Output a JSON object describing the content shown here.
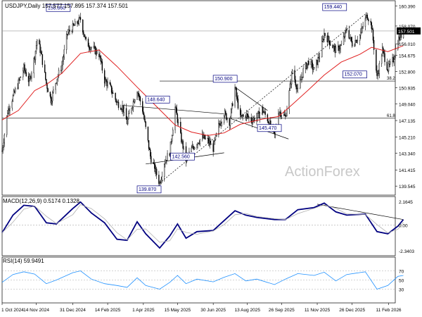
{
  "chart_data": [
    {
      "type": "candlestick",
      "header": "USDJPY,Daily  157.577 157.895 157.374 157.501",
      "watermark": "ActionForex",
      "current_price": "157.501",
      "ylim": [
        138.5,
        161.0
      ],
      "yticks": [
        "160.390",
        "158.070",
        "156.010",
        "154.675",
        "152.800",
        "150.935",
        "149.040",
        "147.135",
        "145.210",
        "143.340",
        "141.415",
        "139.545"
      ],
      "xticks": [
        "1 Oct 2024",
        "14 Nov 2024",
        "31 Dec 2024",
        "14 Feb 2025",
        "1 Apr 2025",
        "15 May 2025",
        "30 Jun 2025",
        "13 Aug 2025",
        "26 Sep 2025",
        "11 Nov 2025",
        "26 Dec 2025",
        "11 Feb 2026"
      ],
      "price_labels": [
        "158.860",
        "148.640",
        "142.560",
        "139.870",
        "150.900",
        "145.470",
        "159.440",
        "152.070"
      ],
      "fib_levels": [
        {
          "label": "38.2",
          "value": 151.7
        },
        {
          "label": "61.8",
          "value": 147.4
        }
      ],
      "close_path": [
        [
          "2024-10-01",
          143.6
        ],
        [
          "2024-10-08",
          148.2
        ],
        [
          "2024-10-15",
          149.9
        ],
        [
          "2024-10-22",
          151.5
        ],
        [
          "2024-10-29",
          153.2
        ],
        [
          "2024-11-05",
          151.6
        ],
        [
          "2024-11-12",
          154.6
        ],
        [
          "2024-11-15",
          156.5
        ],
        [
          "2024-11-20",
          155.0
        ],
        [
          "2024-11-27",
          151.4
        ],
        [
          "2024-12-03",
          149.5
        ],
        [
          "2024-12-10",
          151.9
        ],
        [
          "2024-12-17",
          153.5
        ],
        [
          "2024-12-24",
          157.2
        ],
        [
          "2025-01-01",
          158.0
        ],
        [
          "2025-01-10",
          158.86
        ],
        [
          "2025-01-17",
          156.2
        ],
        [
          "2025-01-24",
          155.6
        ],
        [
          "2025-02-03",
          154.8
        ],
        [
          "2025-02-10",
          151.8
        ],
        [
          "2025-02-17",
          151.0
        ],
        [
          "2025-02-26",
          149.2
        ],
        [
          "2025-03-05",
          148.7
        ],
        [
          "2025-03-11",
          146.9
        ],
        [
          "2025-03-17",
          148.8
        ],
        [
          "2025-03-24",
          150.7
        ],
        [
          "2025-03-31",
          148.4
        ],
        [
          "2025-04-04",
          146.2
        ],
        [
          "2025-04-10",
          143.0
        ],
        [
          "2025-04-22",
          139.87
        ],
        [
          "2025-04-28",
          142.3
        ],
        [
          "2025-05-05",
          143.5
        ],
        [
          "2025-05-12",
          148.64
        ],
        [
          "2025-05-19",
          145.3
        ],
        [
          "2025-05-26",
          142.56
        ],
        [
          "2025-06-02",
          143.8
        ],
        [
          "2025-06-09",
          144.6
        ],
        [
          "2025-06-16",
          145.2
        ],
        [
          "2025-06-23",
          144.8
        ],
        [
          "2025-06-30",
          143.9
        ],
        [
          "2025-07-07",
          146.5
        ],
        [
          "2025-07-14",
          148.0
        ],
        [
          "2025-07-21",
          147.0
        ],
        [
          "2025-07-28",
          150.9
        ],
        [
          "2025-08-04",
          147.4
        ],
        [
          "2025-08-11",
          147.8
        ],
        [
          "2025-08-18",
          147.2
        ],
        [
          "2025-08-25",
          147.5
        ],
        [
          "2025-09-01",
          148.4
        ],
        [
          "2025-09-08",
          147.3
        ],
        [
          "2025-09-17",
          145.47
        ],
        [
          "2025-09-22",
          148.3
        ],
        [
          "2025-10-01",
          147.5
        ],
        [
          "2025-10-06",
          150.4
        ],
        [
          "2025-10-10",
          153.0
        ],
        [
          "2025-10-17",
          150.5
        ],
        [
          "2025-10-24",
          152.9
        ],
        [
          "2025-10-31",
          154.0
        ],
        [
          "2025-11-07",
          153.0
        ],
        [
          "2025-11-14",
          154.7
        ],
        [
          "2025-11-20",
          157.2
        ],
        [
          "2025-11-28",
          156.1
        ],
        [
          "2025-12-05",
          155.2
        ],
        [
          "2025-12-12",
          155.8
        ],
        [
          "2025-12-19",
          157.7
        ],
        [
          "2025-12-26",
          156.0
        ],
        [
          "2026-01-05",
          157.0
        ],
        [
          "2026-01-12",
          158.8
        ],
        [
          "2026-01-14",
          159.44
        ],
        [
          "2026-01-20",
          158.1
        ],
        [
          "2026-01-23",
          155.6
        ],
        [
          "2026-01-27",
          152.07
        ],
        [
          "2026-02-03",
          155.3
        ],
        [
          "2026-02-10",
          153.1
        ],
        [
          "2026-02-17",
          154.2
        ],
        [
          "2026-02-23",
          156.4
        ],
        [
          "2026-03-02",
          157.5
        ]
      ],
      "sma_path": [
        [
          "2024-10-01",
          147.2
        ],
        [
          "2024-10-22",
          148.3
        ],
        [
          "2024-11-12",
          150.6
        ],
        [
          "2024-11-27",
          151.3
        ],
        [
          "2024-12-17",
          152.6
        ],
        [
          "2025-01-10",
          154.9
        ],
        [
          "2025-02-03",
          155.3
        ],
        [
          "2025-02-26",
          153.4
        ],
        [
          "2025-03-24",
          151.0
        ],
        [
          "2025-04-22",
          148.4
        ],
        [
          "2025-05-12",
          146.6
        ],
        [
          "2025-06-02",
          145.8
        ],
        [
          "2025-06-23",
          145.4
        ],
        [
          "2025-07-14",
          145.7
        ],
        [
          "2025-08-04",
          146.7
        ],
        [
          "2025-09-01",
          147.3
        ],
        [
          "2025-09-22",
          147.6
        ],
        [
          "2025-10-10",
          149.0
        ],
        [
          "2025-10-31",
          150.7
        ],
        [
          "2025-11-20",
          152.4
        ],
        [
          "2025-12-12",
          153.9
        ],
        [
          "2026-01-05",
          154.8
        ],
        [
          "2026-01-20",
          155.6
        ],
        [
          "2026-02-10",
          155.1
        ],
        [
          "2026-03-02",
          155.8
        ]
      ]
    },
    {
      "type": "line",
      "title": "MACD(12,26,9) 0.5174 0.1328",
      "ylim": [
        -2.8,
        2.6
      ],
      "yticks": [
        "2.1645",
        "0.00",
        "-2.3403"
      ],
      "macd_path": [
        [
          "2024-10-01",
          -0.7
        ],
        [
          "2024-10-15",
          0.9
        ],
        [
          "2024-10-29",
          1.8
        ],
        [
          "2024-11-12",
          1.7
        ],
        [
          "2024-11-27",
          0.2
        ],
        [
          "2024-12-10",
          0.1
        ],
        [
          "2024-12-31",
          1.5
        ],
        [
          "2025-01-10",
          2.1
        ],
        [
          "2025-01-24",
          1.1
        ],
        [
          "2025-02-10",
          0.2
        ],
        [
          "2025-02-26",
          -1.3
        ],
        [
          "2025-03-11",
          -1.4
        ],
        [
          "2025-03-24",
          0.3
        ],
        [
          "2025-04-04",
          -0.8
        ],
        [
          "2025-04-22",
          -2.1
        ],
        [
          "2025-05-05",
          -1.0
        ],
        [
          "2025-05-15",
          0.1
        ],
        [
          "2025-05-26",
          -1.2
        ],
        [
          "2025-06-09",
          -0.6
        ],
        [
          "2025-06-30",
          -0.5
        ],
        [
          "2025-07-14",
          0.4
        ],
        [
          "2025-07-28",
          1.3
        ],
        [
          "2025-08-11",
          0.9
        ],
        [
          "2025-08-25",
          0.7
        ],
        [
          "2025-09-17",
          0.5
        ],
        [
          "2025-10-01",
          0.5
        ],
        [
          "2025-10-17",
          1.4
        ],
        [
          "2025-11-07",
          1.6
        ],
        [
          "2025-11-20",
          2.0
        ],
        [
          "2025-12-05",
          1.2
        ],
        [
          "2025-12-19",
          0.9
        ],
        [
          "2026-01-12",
          1.0
        ],
        [
          "2026-01-27",
          -0.6
        ],
        [
          "2026-02-10",
          -0.8
        ],
        [
          "2026-02-23",
          -0.1
        ],
        [
          "2026-03-02",
          0.5
        ]
      ]
    },
    {
      "type": "line",
      "title": "RSI(14) 59.9491",
      "ylim": [
        0,
        100
      ],
      "yticks": [
        "70",
        "50",
        "30"
      ],
      "rsi_path": [
        [
          "2024-10-01",
          45
        ],
        [
          "2024-10-15",
          62
        ],
        [
          "2024-10-29",
          68
        ],
        [
          "2024-11-12",
          63
        ],
        [
          "2024-11-27",
          42
        ],
        [
          "2024-12-10",
          50
        ],
        [
          "2024-12-31",
          66
        ],
        [
          "2025-01-10",
          70
        ],
        [
          "2025-01-24",
          52
        ],
        [
          "2025-02-10",
          42
        ],
        [
          "2025-02-26",
          38
        ],
        [
          "2025-03-11",
          34
        ],
        [
          "2025-03-24",
          55
        ],
        [
          "2025-04-04",
          38
        ],
        [
          "2025-04-22",
          30
        ],
        [
          "2025-05-05",
          45
        ],
        [
          "2025-05-15",
          60
        ],
        [
          "2025-05-26",
          42
        ],
        [
          "2025-06-09",
          52
        ],
        [
          "2025-06-30",
          46
        ],
        [
          "2025-07-14",
          56
        ],
        [
          "2025-07-28",
          64
        ],
        [
          "2025-08-11",
          48
        ],
        [
          "2025-08-25",
          52
        ],
        [
          "2025-09-17",
          40
        ],
        [
          "2025-10-01",
          52
        ],
        [
          "2025-10-17",
          64
        ],
        [
          "2025-11-07",
          60
        ],
        [
          "2025-11-20",
          67
        ],
        [
          "2025-12-05",
          48
        ],
        [
          "2025-12-19",
          62
        ],
        [
          "2026-01-12",
          68
        ],
        [
          "2026-01-27",
          30
        ],
        [
          "2026-02-10",
          38
        ],
        [
          "2026-02-23",
          58
        ],
        [
          "2026-03-02",
          60
        ]
      ]
    }
  ],
  "colors": {
    "candle": "#000000",
    "sma": "#e02020",
    "macd": "#000080",
    "signal": "#b0b0b0",
    "rsi": "#1e90ff",
    "label_border": "#000080",
    "label_text": "#000080",
    "watermark": "#c8c8c8"
  }
}
